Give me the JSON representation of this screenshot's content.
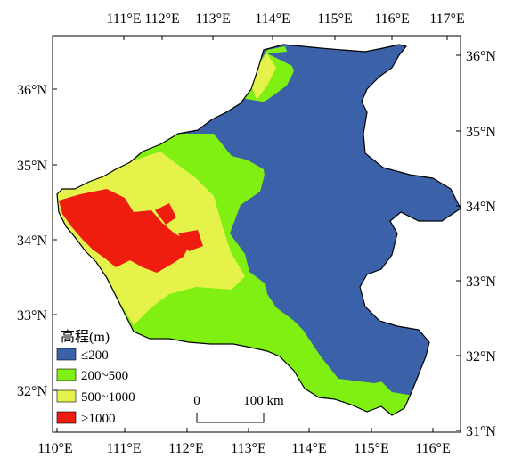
{
  "map": {
    "top_x_ticks": [
      "111°E",
      "112°E",
      "113°E",
      "114°E",
      "115°E",
      "116°E",
      "117°E"
    ],
    "bottom_x_ticks": [
      "110°E",
      "111°E",
      "112°E",
      "113°E",
      "114°E",
      "115°E",
      "116°E"
    ],
    "left_y_ticks": [
      "36°N",
      "35°N",
      "34°N",
      "33°N",
      "32°N"
    ],
    "right_y_ticks": [
      "36°N",
      "35°N",
      "34°N",
      "33°N",
      "32°N",
      "31°N"
    ]
  },
  "legend": {
    "title": "高程(m)",
    "items": [
      {
        "label": "≤200",
        "color": "#3b62a8"
      },
      {
        "label": "200~500",
        "color": "#7ff011"
      },
      {
        "label": "500~1000",
        "color": "#e4f24a"
      },
      {
        "label": ">1000",
        "color": "#ef1c10"
      }
    ]
  },
  "scale_bar": {
    "start_label": "0",
    "end_label": "100 km"
  }
}
